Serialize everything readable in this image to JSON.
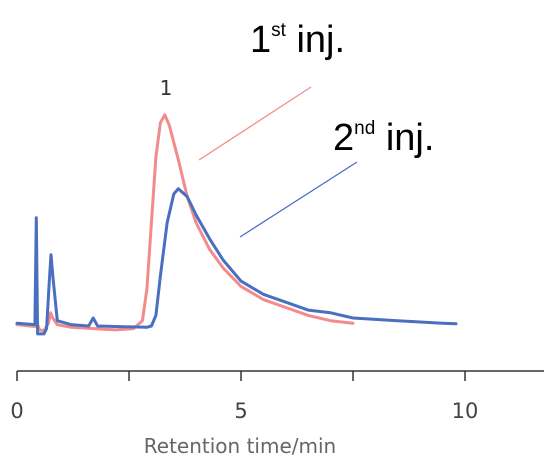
{
  "chart_data": {
    "type": "line",
    "title": "",
    "xlabel": "Retention time/min",
    "ylabel": "",
    "xlim": [
      0,
      12
    ],
    "ylim": [
      0,
      1
    ],
    "grid": false,
    "x_ticks": [
      {
        "value": 0,
        "label": "0"
      },
      {
        "value": 5,
        "label": "5"
      },
      {
        "value": 10,
        "label": "10"
      }
    ],
    "peak_label": "1",
    "annotations": [
      {
        "main": "1",
        "sup": "st",
        "rest": " inj.",
        "series": 0
      },
      {
        "main": "2",
        "sup": "nd",
        "rest": " inj.",
        "series": 1
      }
    ],
    "series": [
      {
        "color": "#f28c8c",
        "points": [
          [
            0,
            0.115
          ],
          [
            0.4,
            0.108
          ],
          [
            0.45,
            0.12
          ],
          [
            0.5,
            0.095
          ],
          [
            0.6,
            0.092
          ],
          [
            0.7,
            0.12
          ],
          [
            0.75,
            0.16
          ],
          [
            0.8,
            0.14
          ],
          [
            0.9,
            0.115
          ],
          [
            1.2,
            0.105
          ],
          [
            1.7,
            0.1
          ],
          [
            2.2,
            0.095
          ],
          [
            2.6,
            0.1
          ],
          [
            2.8,
            0.13
          ],
          [
            2.9,
            0.25
          ],
          [
            3.0,
            0.5
          ],
          [
            3.1,
            0.75
          ],
          [
            3.2,
            0.88
          ],
          [
            3.3,
            0.91
          ],
          [
            3.4,
            0.87
          ],
          [
            3.6,
            0.74
          ],
          [
            3.8,
            0.6
          ],
          [
            4.0,
            0.5
          ],
          [
            4.3,
            0.4
          ],
          [
            4.6,
            0.33
          ],
          [
            5.0,
            0.26
          ],
          [
            5.5,
            0.21
          ],
          [
            6.0,
            0.18
          ],
          [
            6.5,
            0.15
          ],
          [
            7.0,
            0.13
          ],
          [
            7.5,
            0.12
          ]
        ]
      },
      {
        "color": "#4a6fc0",
        "points": [
          [
            0,
            0.12
          ],
          [
            0.4,
            0.115
          ],
          [
            0.43,
            0.52
          ],
          [
            0.46,
            0.08
          ],
          [
            0.6,
            0.08
          ],
          [
            0.66,
            0.1
          ],
          [
            0.72,
            0.28
          ],
          [
            0.76,
            0.38
          ],
          [
            0.8,
            0.3
          ],
          [
            0.9,
            0.13
          ],
          [
            1.2,
            0.115
          ],
          [
            1.6,
            0.11
          ],
          [
            1.7,
            0.14
          ],
          [
            1.8,
            0.11
          ],
          [
            2.2,
            0.108
          ],
          [
            2.9,
            0.105
          ],
          [
            3.0,
            0.11
          ],
          [
            3.1,
            0.15
          ],
          [
            3.2,
            0.3
          ],
          [
            3.35,
            0.5
          ],
          [
            3.5,
            0.61
          ],
          [
            3.6,
            0.63
          ],
          [
            3.8,
            0.6
          ],
          [
            4.0,
            0.53
          ],
          [
            4.3,
            0.44
          ],
          [
            4.6,
            0.36
          ],
          [
            5.0,
            0.28
          ],
          [
            5.5,
            0.23
          ],
          [
            6.0,
            0.2
          ],
          [
            6.5,
            0.17
          ],
          [
            7.0,
            0.16
          ],
          [
            7.5,
            0.14
          ],
          [
            8.0,
            0.135
          ],
          [
            8.5,
            0.13
          ],
          [
            9.0,
            0.125
          ],
          [
            9.5,
            0.12
          ],
          [
            9.8,
            0.118
          ]
        ]
      }
    ]
  }
}
